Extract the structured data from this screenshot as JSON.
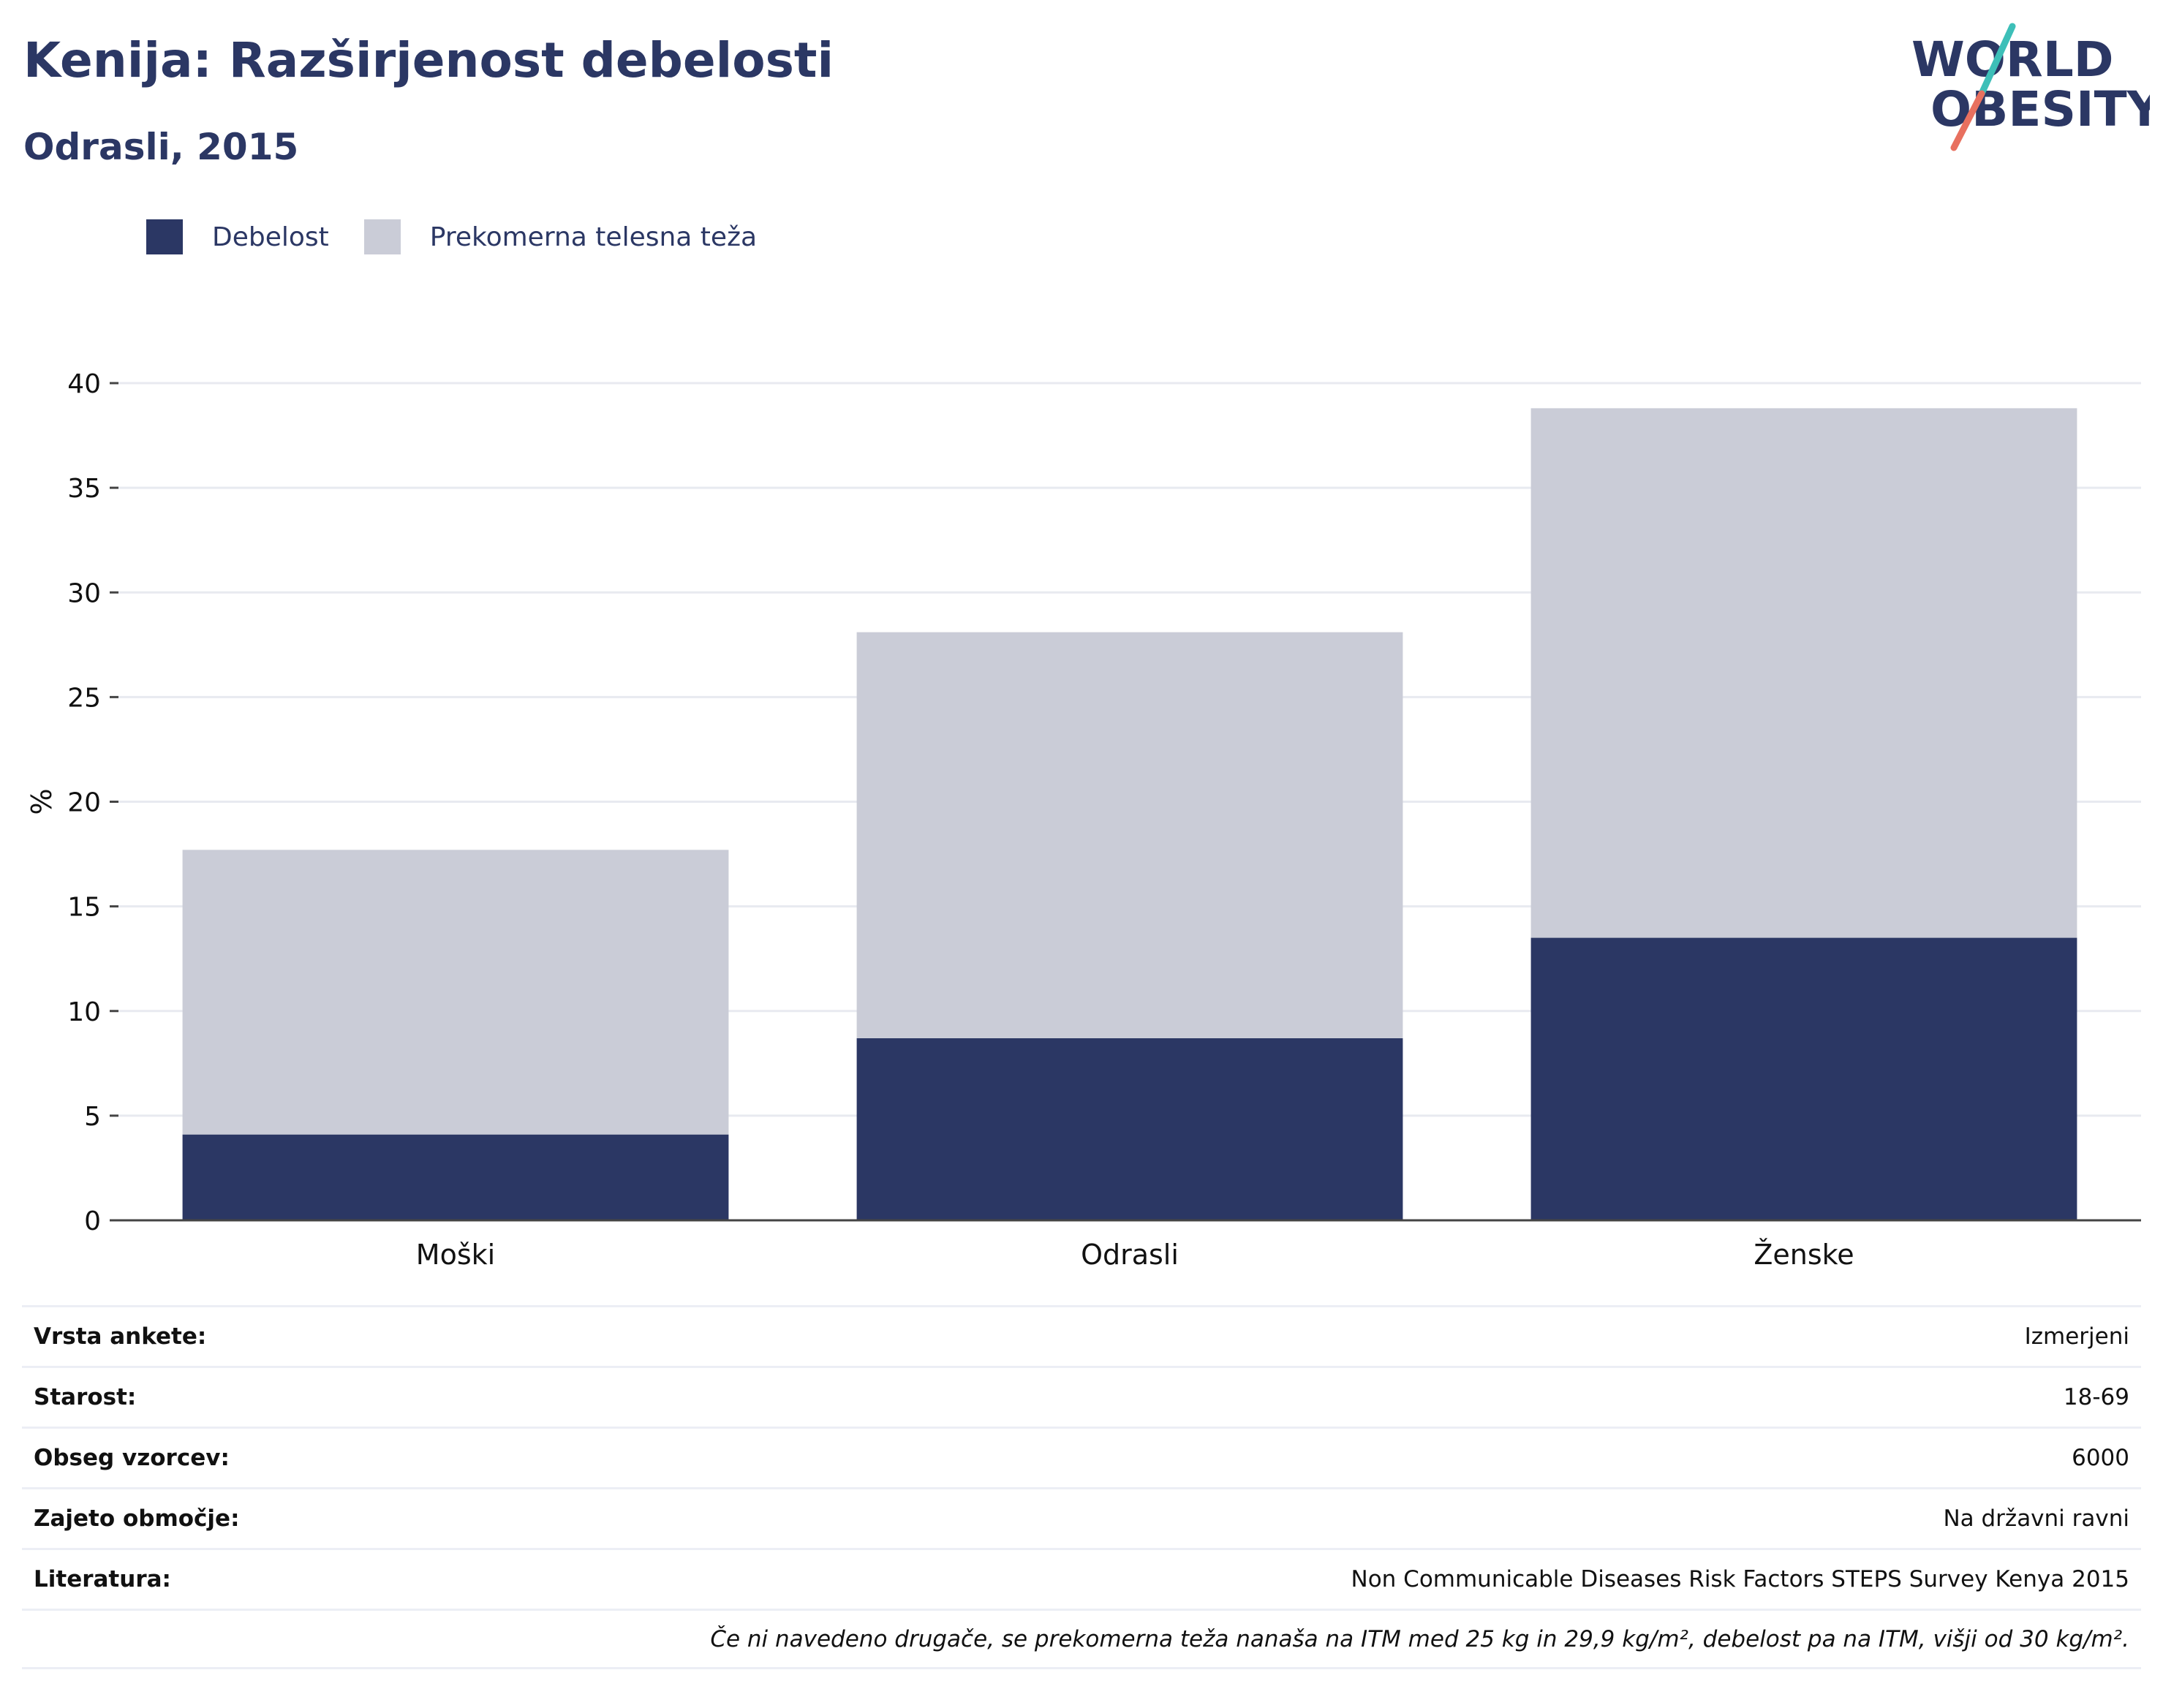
{
  "header": {
    "title": "Kenija: Razširjenost debelosti",
    "subtitle": "Odrasli, 2015"
  },
  "logo": {
    "line1": "WORLD",
    "line2": "OBESITY",
    "colors": {
      "text": "#2b3764",
      "slash_top": "#3dbfb8",
      "slash_bottom": "#e8705f"
    }
  },
  "legend": [
    {
      "label": "Debelost",
      "color": "#2b3764"
    },
    {
      "label": "Prekomerna telesna teža",
      "color": "#caccd7"
    }
  ],
  "chart_data": {
    "type": "bar",
    "stacked": true,
    "categories": [
      "Moški",
      "Odrasli",
      "Ženske"
    ],
    "series": [
      {
        "name": "Debelost",
        "values": [
          4.1,
          8.7,
          13.5
        ],
        "color": "#2b3764"
      },
      {
        "name": "Prekomerna telesna teža",
        "values": [
          13.6,
          19.4,
          25.3
        ],
        "color": "#caccd7"
      }
    ],
    "xlabel": "",
    "ylabel": "%",
    "ylim": [
      0,
      40
    ],
    "yticks": [
      0,
      5,
      10,
      15,
      20,
      25,
      30,
      35,
      40
    ],
    "grid": true,
    "legend_position": "top-left"
  },
  "info": {
    "rows": [
      {
        "label": "Vrsta ankete:",
        "value": "Izmerjeni"
      },
      {
        "label": "Starost:",
        "value": "18-69"
      },
      {
        "label": "Obseg vzorcev:",
        "value": "6000"
      },
      {
        "label": "Zajeto območje:",
        "value": "Na državni ravni"
      },
      {
        "label": "Literatura:",
        "value": "Non Communicable Diseases Risk Factors STEPS Survey Kenya 2015"
      }
    ],
    "note": "Če ni navedeno drugače, se prekomerna teža nanaša na ITM med 25 kg in 29,9 kg/m², debelost pa na ITM, višji od 30 kg/m²."
  }
}
